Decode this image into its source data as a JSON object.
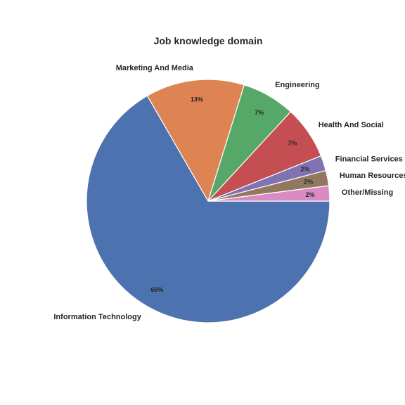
{
  "chart_data": {
    "type": "pie",
    "title": "Job knowledge domain",
    "categories": [
      "Information Technology",
      "Marketing And Media",
      "Engineering",
      "Health And Social",
      "Financial Services",
      "Human Resources",
      "Other/Missing"
    ],
    "values": [
      66,
      13,
      7,
      7,
      2,
      2,
      2
    ],
    "value_labels": [
      "66%",
      "13%",
      "7%",
      "7%",
      "2%",
      "2%",
      "2%"
    ],
    "colors": [
      "#4c72b0",
      "#dd8452",
      "#55a868",
      "#c44e52",
      "#8172b3",
      "#937860",
      "#da8bc3"
    ],
    "start_angle_deg": 0,
    "direction": "clockwise"
  }
}
